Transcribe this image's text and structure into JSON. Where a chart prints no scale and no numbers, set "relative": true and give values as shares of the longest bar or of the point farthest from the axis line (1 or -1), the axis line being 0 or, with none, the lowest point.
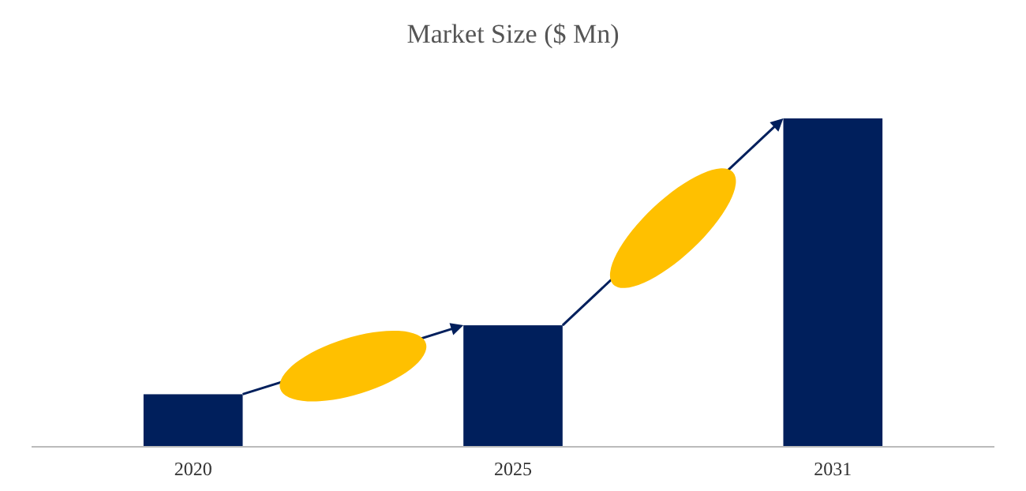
{
  "chart_data": {
    "type": "bar",
    "title": "Market Size ($ Mn)",
    "categories": [
      "2020",
      "2025",
      "2031"
    ],
    "values": [
      0.16,
      0.37,
      1
    ],
    "color": "#001f5c",
    "relative": true
  }
}
